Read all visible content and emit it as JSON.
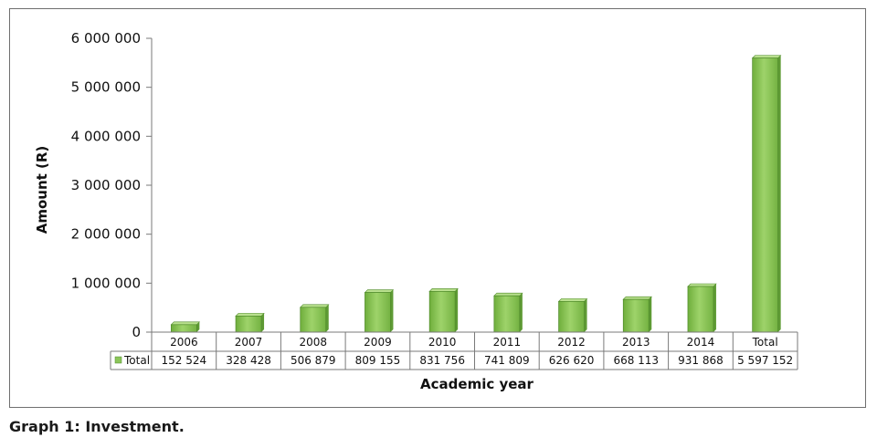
{
  "caption": "Graph 1: Investment.",
  "chart_data": {
    "type": "bar",
    "categories": [
      "2006",
      "2007",
      "2008",
      "2009",
      "2010",
      "2011",
      "2012",
      "2013",
      "2014",
      "Total"
    ],
    "series": [
      {
        "name": "Total",
        "values": [
          152524,
          328428,
          506879,
          809155,
          831756,
          741809,
          626620,
          668113,
          931868,
          5597152
        ]
      }
    ],
    "data_table": {
      "row_label": "Total",
      "cells": [
        "152 524",
        "328 428",
        "506 879",
        "809 155",
        "831 756",
        "741 809",
        "626 620",
        "668 113",
        "931 868",
        "5 597 152"
      ]
    },
    "xlabel": "Academic year",
    "ylabel": "Amount (R)",
    "ylim": [
      0,
      6000000
    ],
    "yticks": [
      0,
      1000000,
      2000000,
      3000000,
      4000000,
      5000000,
      6000000
    ],
    "ytick_labels": [
      "0",
      "1 000 000",
      "2 000 000",
      "3 000 000",
      "4 000 000",
      "5 000 000",
      "6 000 000"
    ],
    "grid": false,
    "bar_color": "#8cc65a",
    "bar_edge_color": "#4f8a2a",
    "legend_key_color": "#8cc65a"
  }
}
